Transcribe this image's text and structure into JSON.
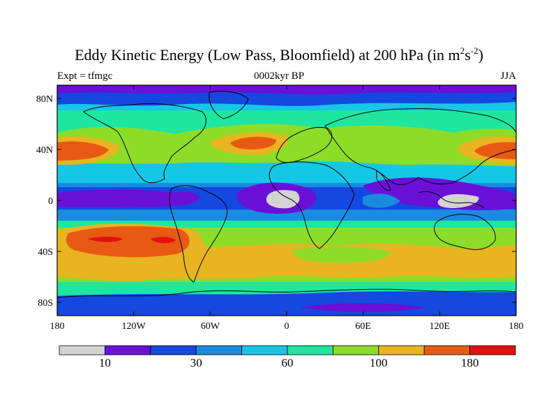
{
  "title": {
    "main": "Eddy Kinetic Energy (Low Pass, Bloomfield) at 200 hPa (in m",
    "sup1": "2",
    "mid": "s",
    "sup2": "-2",
    "close": ")"
  },
  "subtitles": {
    "left": "Expt = tfmgc",
    "center": "0002kyr BP",
    "right": "JJA"
  },
  "axes": {
    "lat_labels": [
      "80N",
      "40N",
      "0",
      "40S",
      "80S"
    ],
    "lon_labels": [
      "180",
      "120W",
      "60W",
      "0",
      "60E",
      "120E",
      "180"
    ]
  },
  "colorbar": {
    "colors": [
      "#d3d3d3",
      "#6a10d8",
      "#1448e0",
      "#1a8ce0",
      "#15c6e6",
      "#1ee6a0",
      "#8ddc28",
      "#e8b420",
      "#e85a14",
      "#e60f0f"
    ],
    "labels": [
      "10",
      "30",
      "60",
      "100",
      "180"
    ]
  },
  "colors": {
    "c0": "#d3d3d3",
    "c1": "#6a10d8",
    "c2": "#1448e0",
    "c3": "#1a8ce0",
    "c4": "#15c6e6",
    "c5": "#1ee6a0",
    "c6": "#8ddc28",
    "c7": "#e8b420",
    "c8": "#e85a14",
    "c9": "#e60f0f"
  }
}
